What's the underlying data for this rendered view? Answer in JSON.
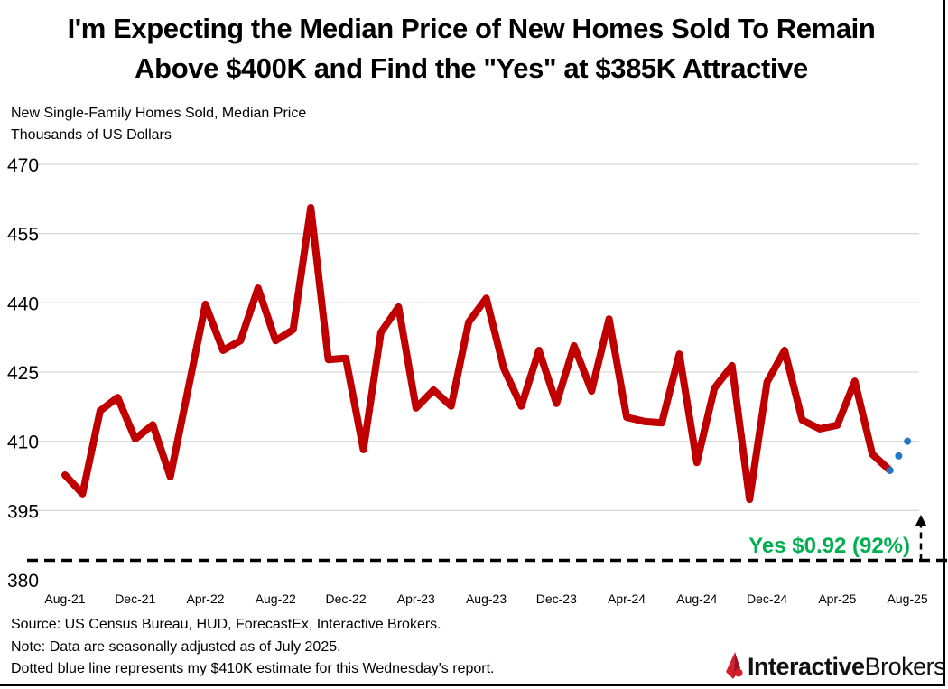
{
  "title_line1": "I'm Expecting the Median Price of New Homes Sold To Remain",
  "title_line2": "Above $400K and Find the \"Yes\" at $385K Attractive",
  "subtitle_line1": "New Single-Family Homes Sold, Median Price",
  "subtitle_line2": "Thousands of US Dollars",
  "notes": [
    "Source: US Census Bureau, HUD, ForecastEx, Interactive Brokers.",
    "Note: Data are seasonally adjusted as of July 2025.",
    "Dotted blue line represents my $410K estimate for this Wednesday's report."
  ],
  "logo": {
    "bold": "Interactive",
    "regular": "Brokers",
    "icon": "ib-flame-logo-icon"
  },
  "colors": {
    "series": "#C00000",
    "estimate": "#1F78C8",
    "annotation": "#00B050",
    "threshold": "#000000"
  },
  "chart_data": {
    "type": "line",
    "title": "I'm Expecting the Median Price of New Homes Sold To Remain Above $400K and Find the \"Yes\" at $385K Attractive",
    "ylabel": "New Single-Family Homes Sold, Median Price, Thousands of US Dollars",
    "ylim": [
      380,
      470
    ],
    "yticks": [
      380,
      395,
      410,
      425,
      440,
      455,
      470
    ],
    "grid": true,
    "xtick_labels": [
      "Aug-21",
      "Dec-21",
      "Apr-22",
      "Aug-22",
      "Dec-22",
      "Apr-23",
      "Aug-23",
      "Dec-23",
      "Apr-24",
      "Aug-24",
      "Dec-24",
      "Apr-25",
      "Aug-25"
    ],
    "x": [
      "Aug-21",
      "Sep-21",
      "Oct-21",
      "Nov-21",
      "Dec-21",
      "Jan-22",
      "Feb-22",
      "Mar-22",
      "Apr-22",
      "May-22",
      "Jun-22",
      "Jul-22",
      "Aug-22",
      "Sep-22",
      "Oct-22",
      "Nov-22",
      "Dec-22",
      "Jan-23",
      "Feb-23",
      "Mar-23",
      "Apr-23",
      "May-23",
      "Jun-23",
      "Jul-23",
      "Aug-23",
      "Sep-23",
      "Oct-23",
      "Nov-23",
      "Dec-23",
      "Jan-24",
      "Feb-24",
      "Mar-24",
      "Apr-24",
      "May-24",
      "Jun-24",
      "Jul-24",
      "Aug-24",
      "Sep-24",
      "Oct-24",
      "Nov-24",
      "Dec-24",
      "Jan-25",
      "Feb-25",
      "Mar-25",
      "Apr-25",
      "May-25",
      "Jun-25",
      "Jul-25"
    ],
    "values": [
      402.7,
      398.6,
      416.6,
      419.5,
      410.5,
      413.6,
      402.3,
      421.0,
      439.7,
      429.7,
      431.8,
      443.2,
      431.8,
      434.2,
      460.6,
      427.7,
      428.0,
      408.2,
      433.6,
      439.1,
      417.2,
      421.1,
      417.6,
      435.8,
      441.0,
      425.8,
      417.6,
      429.7,
      418.2,
      430.7,
      420.9,
      436.5,
      415.2,
      414.3,
      414.0,
      428.9,
      405.4,
      421.5,
      426.4,
      397.4,
      422.8,
      429.7,
      414.6,
      412.7,
      413.5,
      423.0,
      407.2,
      403.7
    ],
    "estimate": {
      "x": [
        "Jul-25",
        "Aug-25"
      ],
      "values": [
        403.7,
        410
      ]
    },
    "threshold": {
      "value": 385,
      "label": "Yes $0.92 (92%)"
    }
  }
}
